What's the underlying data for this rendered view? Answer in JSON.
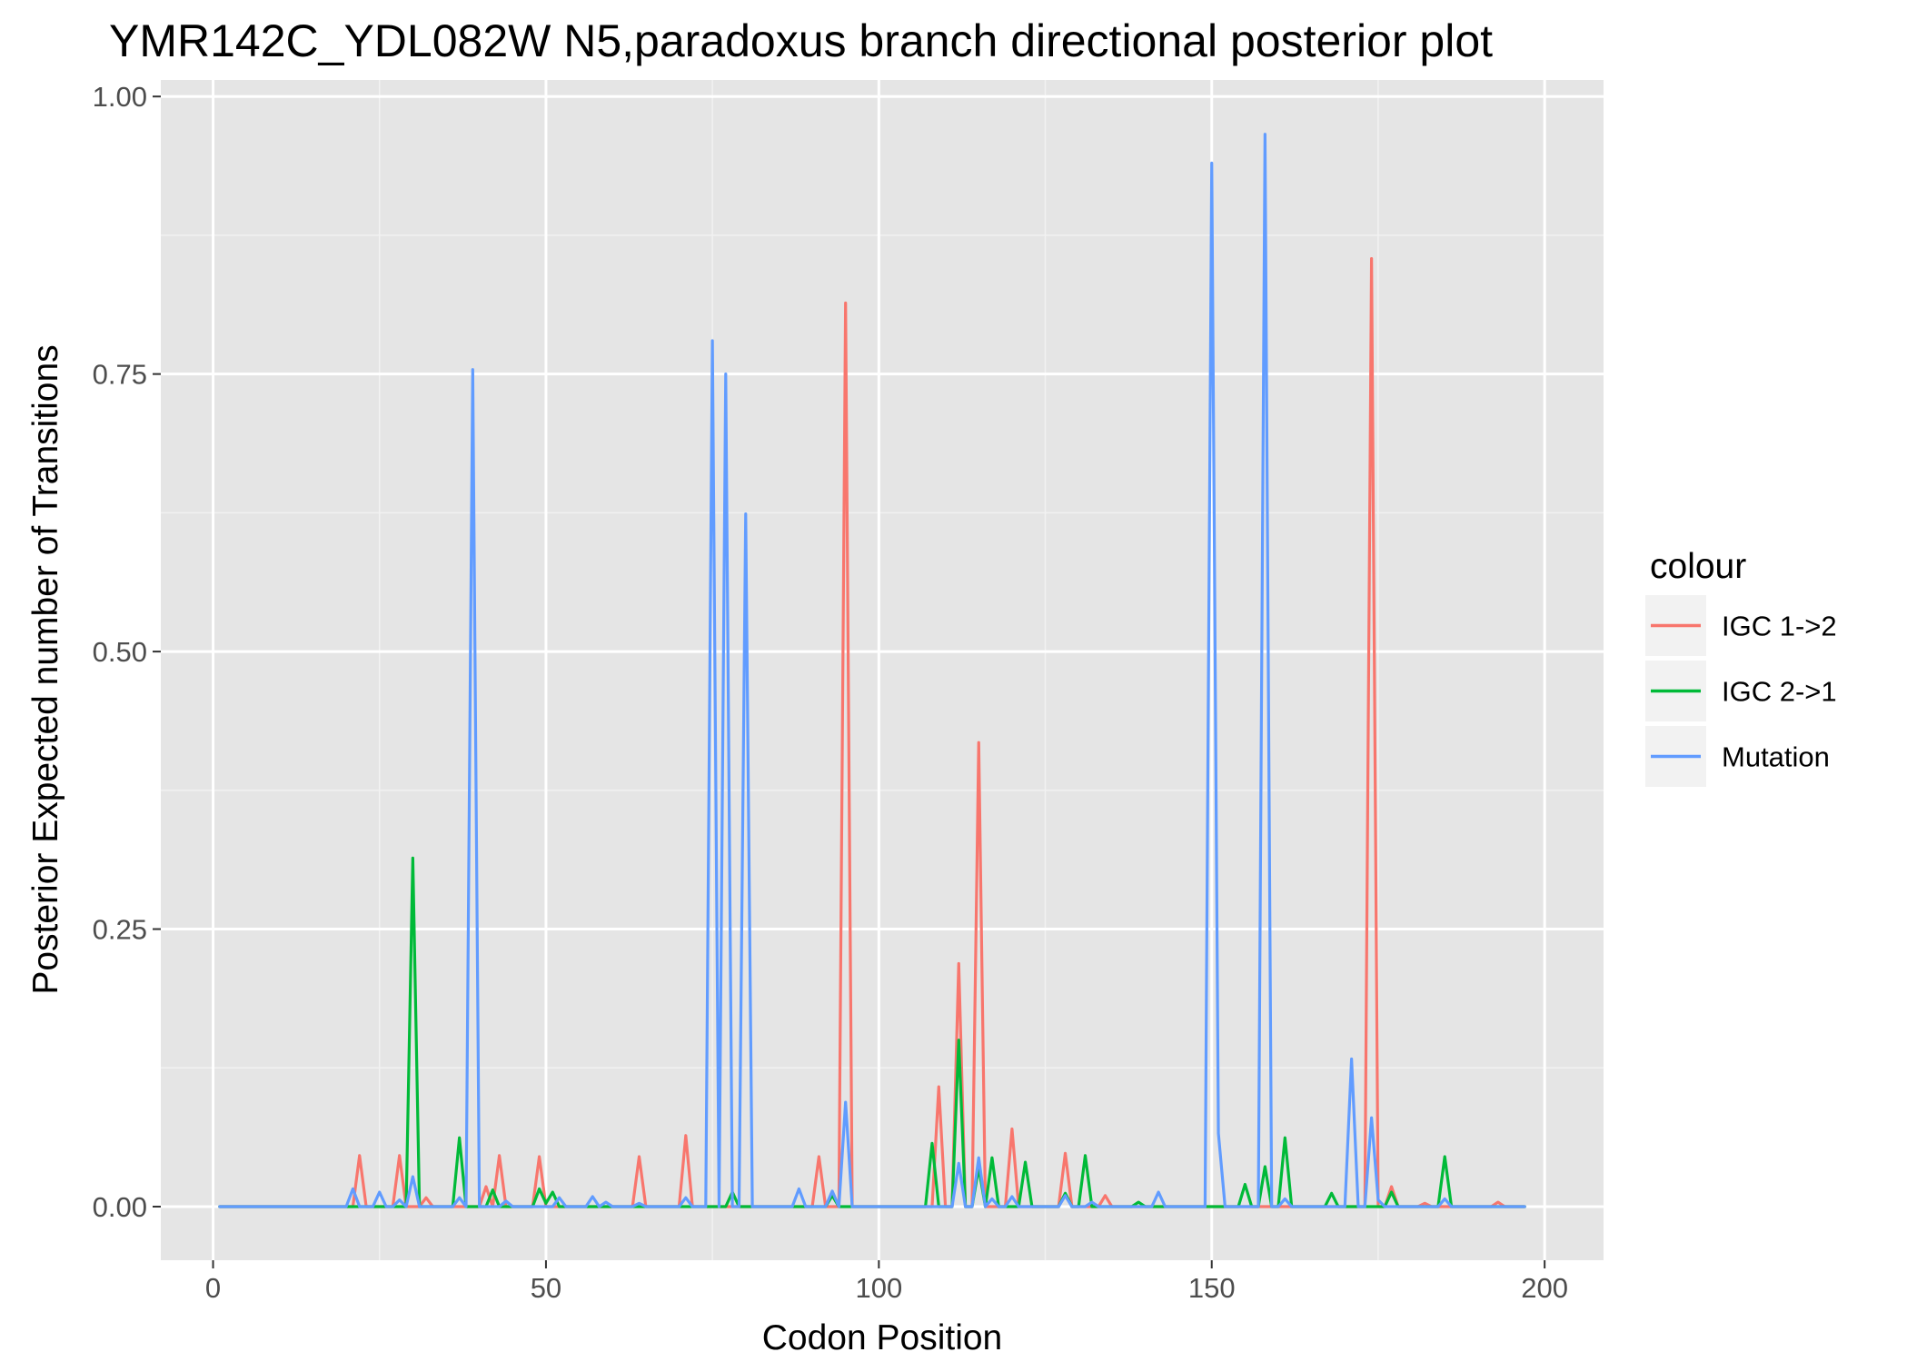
{
  "chart_data": {
    "type": "line",
    "title": "YMR142C_YDL082W N5,paradoxus branch directional posterior plot",
    "xlabel": "Codon Position",
    "ylabel": "Posterior Expected number of Transitions",
    "xlim": [
      -7.85,
      208.85
    ],
    "ylim": [
      -0.0483,
      1.0149
    ],
    "x_ticks": [
      0,
      50,
      100,
      150,
      200
    ],
    "x_tick_labels": [
      "0",
      "50",
      "100",
      "150",
      "200"
    ],
    "y_ticks": [
      0,
      0.25,
      0.5,
      0.75,
      1.0
    ],
    "y_tick_labels": [
      "0.00",
      "0.25",
      "0.50",
      "0.75",
      "1.00"
    ],
    "grid": true,
    "panel_background": "#e5e5e5",
    "legend": {
      "title": "colour",
      "position": "right"
    },
    "series": [
      {
        "name": "IGC 1->2",
        "color": "#f8766d",
        "points": [
          [
            1,
            0
          ],
          [
            21,
            0
          ],
          [
            22,
            0.046
          ],
          [
            23,
            0
          ],
          [
            27,
            0
          ],
          [
            28,
            0.046
          ],
          [
            29,
            0
          ],
          [
            31,
            0
          ],
          [
            32,
            0.008
          ],
          [
            33,
            0
          ],
          [
            39,
            0
          ],
          [
            40,
            0
          ],
          [
            41,
            0.018
          ],
          [
            42,
            0
          ],
          [
            43,
            0.046
          ],
          [
            44,
            0
          ],
          [
            48,
            0
          ],
          [
            49,
            0.045
          ],
          [
            50,
            0
          ],
          [
            63,
            0
          ],
          [
            64,
            0.045
          ],
          [
            65,
            0
          ],
          [
            70,
            0
          ],
          [
            71,
            0.064
          ],
          [
            72,
            0
          ],
          [
            90,
            0
          ],
          [
            91,
            0.045
          ],
          [
            92,
            0
          ],
          [
            94,
            0
          ],
          [
            95,
            0.814
          ],
          [
            96,
            0
          ],
          [
            108,
            0
          ],
          [
            109,
            0.108
          ],
          [
            110,
            0
          ],
          [
            111,
            0
          ],
          [
            112,
            0.219
          ],
          [
            113,
            0
          ],
          [
            114,
            0
          ],
          [
            115,
            0.418
          ],
          [
            116,
            0
          ],
          [
            119,
            0
          ],
          [
            120,
            0.07
          ],
          [
            121,
            0
          ],
          [
            127,
            0
          ],
          [
            128,
            0.048
          ],
          [
            129,
            0
          ],
          [
            133,
            0
          ],
          [
            134,
            0.01
          ],
          [
            135,
            0
          ],
          [
            173,
            0
          ],
          [
            174,
            0.854
          ],
          [
            175,
            0
          ],
          [
            176,
            0
          ],
          [
            177,
            0.018
          ],
          [
            178,
            0
          ],
          [
            181,
            0
          ],
          [
            182,
            0.003
          ],
          [
            183,
            0
          ],
          [
            192,
            0
          ],
          [
            193,
            0.004
          ],
          [
            194,
            0
          ],
          [
            197,
            0
          ]
        ]
      },
      {
        "name": "IGC 2->1",
        "color": "#00ba38",
        "points": [
          [
            1,
            0
          ],
          [
            29,
            0
          ],
          [
            30,
            0.314
          ],
          [
            31,
            0
          ],
          [
            36,
            0
          ],
          [
            37,
            0.062
          ],
          [
            38,
            0
          ],
          [
            41,
            0
          ],
          [
            42,
            0.015
          ],
          [
            43,
            0
          ],
          [
            48,
            0
          ],
          [
            49,
            0.016
          ],
          [
            50,
            0.003
          ],
          [
            51,
            0.013
          ],
          [
            52,
            0
          ],
          [
            77,
            0
          ],
          [
            78,
            0.013
          ],
          [
            79,
            0
          ],
          [
            92,
            0
          ],
          [
            93,
            0.01
          ],
          [
            94,
            0
          ],
          [
            107,
            0
          ],
          [
            108,
            0.057
          ],
          [
            109,
            0
          ],
          [
            111,
            0
          ],
          [
            112,
            0.15
          ],
          [
            113,
            0
          ],
          [
            114,
            0
          ],
          [
            115,
            0.035
          ],
          [
            116,
            0
          ],
          [
            117,
            0.044
          ],
          [
            118,
            0
          ],
          [
            121,
            0
          ],
          [
            122,
            0.04
          ],
          [
            123,
            0
          ],
          [
            127,
            0
          ],
          [
            128,
            0.012
          ],
          [
            129,
            0
          ],
          [
            130,
            0
          ],
          [
            131,
            0.046
          ],
          [
            132,
            0
          ],
          [
            138,
            0
          ],
          [
            139,
            0.004
          ],
          [
            140,
            0
          ],
          [
            154,
            0
          ],
          [
            155,
            0.02
          ],
          [
            156,
            0
          ],
          [
            157,
            0
          ],
          [
            158,
            0.036
          ],
          [
            159,
            0
          ],
          [
            160,
            0
          ],
          [
            161,
            0.062
          ],
          [
            162,
            0
          ],
          [
            167,
            0
          ],
          [
            168,
            0.012
          ],
          [
            169,
            0
          ],
          [
            176,
            0
          ],
          [
            177,
            0.013
          ],
          [
            178,
            0
          ],
          [
            184,
            0
          ],
          [
            185,
            0.045
          ],
          [
            186,
            0
          ],
          [
            197,
            0
          ]
        ]
      },
      {
        "name": "Mutation",
        "color": "#619cff",
        "points": [
          [
            1,
            0
          ],
          [
            20,
            0
          ],
          [
            21,
            0.016
          ],
          [
            22,
            0
          ],
          [
            24,
            0
          ],
          [
            25,
            0.013
          ],
          [
            26,
            0
          ],
          [
            27,
            0
          ],
          [
            28,
            0.006
          ],
          [
            29,
            0
          ],
          [
            30,
            0.027
          ],
          [
            31,
            0
          ],
          [
            36,
            0
          ],
          [
            37,
            0.008
          ],
          [
            38,
            0
          ],
          [
            39,
            0.754
          ],
          [
            40,
            0
          ],
          [
            43,
            0
          ],
          [
            44,
            0.005
          ],
          [
            45,
            0
          ],
          [
            51,
            0
          ],
          [
            52,
            0.008
          ],
          [
            53,
            0
          ],
          [
            56,
            0
          ],
          [
            57,
            0.009
          ],
          [
            58,
            0
          ],
          [
            59,
            0.004
          ],
          [
            60,
            0
          ],
          [
            63,
            0
          ],
          [
            64,
            0.003
          ],
          [
            65,
            0
          ],
          [
            70,
            0
          ],
          [
            71,
            0.008
          ],
          [
            72,
            0
          ],
          [
            74,
            0
          ],
          [
            75,
            0.78
          ],
          [
            76,
            0
          ],
          [
            77,
            0.75
          ],
          [
            78,
            0
          ],
          [
            79,
            0
          ],
          [
            80,
            0.624
          ],
          [
            81,
            0
          ],
          [
            87,
            0
          ],
          [
            88,
            0.016
          ],
          [
            89,
            0
          ],
          [
            92,
            0
          ],
          [
            93,
            0.014
          ],
          [
            94,
            0
          ],
          [
            95,
            0.094
          ],
          [
            96,
            0
          ],
          [
            111,
            0
          ],
          [
            112,
            0.039
          ],
          [
            113,
            0
          ],
          [
            114,
            0
          ],
          [
            115,
            0.044
          ],
          [
            116,
            0
          ],
          [
            117,
            0.007
          ],
          [
            118,
            0
          ],
          [
            119,
            0
          ],
          [
            120,
            0.009
          ],
          [
            121,
            0
          ],
          [
            127,
            0
          ],
          [
            128,
            0.01
          ],
          [
            129,
            0
          ],
          [
            131,
            0
          ],
          [
            132,
            0.004
          ],
          [
            133,
            0
          ],
          [
            141,
            0
          ],
          [
            142,
            0.013
          ],
          [
            143,
            0
          ],
          [
            149,
            0
          ],
          [
            150,
            0.94
          ],
          [
            151,
            0.066
          ],
          [
            152,
            0
          ],
          [
            157,
            0
          ],
          [
            158,
            0.966
          ],
          [
            159,
            0
          ],
          [
            160,
            0
          ],
          [
            161,
            0.007
          ],
          [
            162,
            0
          ],
          [
            170,
            0
          ],
          [
            171,
            0.133
          ],
          [
            172,
            0
          ],
          [
            173,
            0
          ],
          [
            174,
            0.08
          ],
          [
            175,
            0.006
          ],
          [
            176,
            0
          ],
          [
            184,
            0
          ],
          [
            185,
            0.007
          ],
          [
            186,
            0
          ],
          [
            197,
            0
          ]
        ]
      }
    ]
  }
}
